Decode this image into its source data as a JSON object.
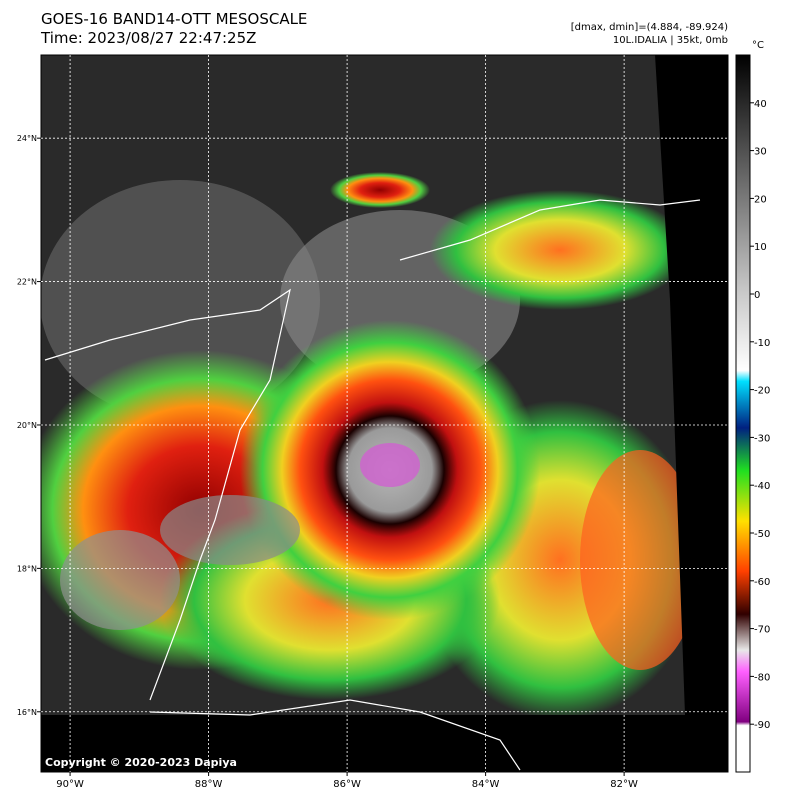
{
  "header": {
    "title": "GOES-16 BAND14-OTT MESOSCALE",
    "time": "Time: 2023/08/27 22:47:25Z",
    "range": "[dmax, dmin]=(4.884, -89.924)",
    "storm": "10L.IDALIA | 35kt, 0mb"
  },
  "map": {
    "lonlim": [
      -90.42,
      -80.5
    ],
    "latlim": [
      15.16,
      25.16
    ],
    "lon_ticks": [
      {
        "value": -90,
        "label": "90°W"
      },
      {
        "value": -88,
        "label": "88°W"
      },
      {
        "value": -86,
        "label": "86°W"
      },
      {
        "value": -84,
        "label": "84°W"
      },
      {
        "value": -82,
        "label": "82°W"
      }
    ],
    "lat_ticks": [
      {
        "value": 24,
        "label": "24°N"
      },
      {
        "value": 22,
        "label": "22°N"
      },
      {
        "value": 20,
        "label": "20°N"
      },
      {
        "value": 18,
        "label": "18°N"
      },
      {
        "value": 16,
        "label": "16°N"
      }
    ],
    "copyright": "Copyright © 2020-2023 Dapiya"
  },
  "colorbar": {
    "unit": "°C",
    "range": [
      -100,
      50
    ],
    "ticks": [
      40,
      30,
      20,
      10,
      0,
      -10,
      -20,
      -30,
      -40,
      -50,
      -60,
      -70,
      -80,
      -90
    ]
  }
}
